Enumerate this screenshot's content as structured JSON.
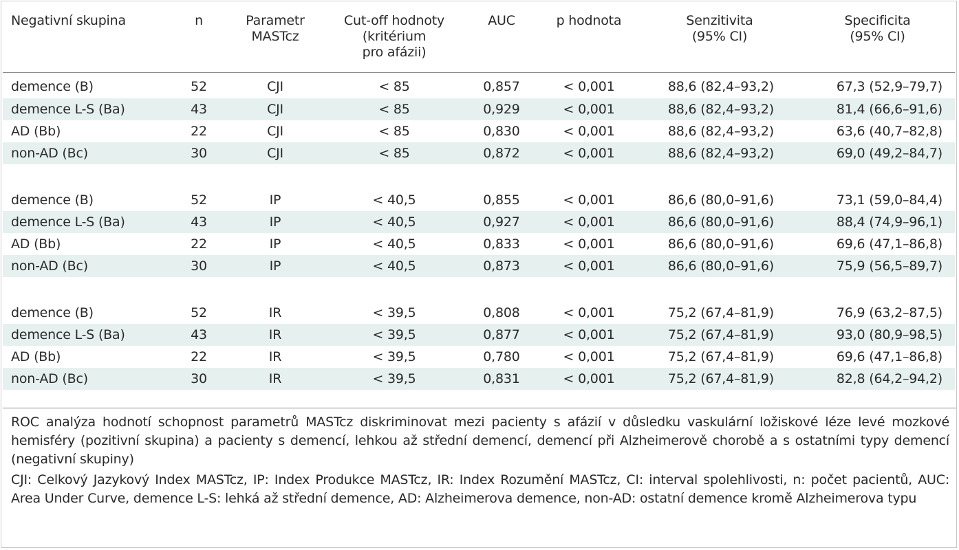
{
  "header": {
    "col1": [
      "Negativní skupina"
    ],
    "col2": [
      "n"
    ],
    "col3": [
      "Parametr",
      "MASTcz"
    ],
    "col4": [
      "Cut-off hodnoty",
      "(kritérium",
      "pro afázii)"
    ],
    "col5": [
      "AUC"
    ],
    "col6": [
      "p hodnota"
    ],
    "col7": [
      "Senzitivita",
      "(95% CI)"
    ],
    "col8": [
      "Specificita",
      "(95% CI)"
    ]
  },
  "rows": [
    [
      "demence (B)",
      "52",
      "CJI",
      "< 85",
      "0,857",
      "< 0,001",
      "88,6 (82,4–93,2)",
      "67,3 (52,9–79,7)"
    ],
    [
      "demence L-S (Ba)",
      "43",
      "CJI",
      "< 85",
      "0,929",
      "< 0,001",
      "88,6 (82,4–93,2)",
      "81,4 (66,6–91,6)"
    ],
    [
      "AD (Bb)",
      "22",
      "CJI",
      "< 85",
      "0,830",
      "< 0,001",
      "88,6 (82,4–93,2)",
      "63,6 (40,7–82,8)"
    ],
    [
      "non-AD (Bc)",
      "30",
      "CJI",
      "< 85",
      "0,872",
      "< 0,001",
      "88,6 (82,4–93,2)",
      "69,0 (49,2–84,7)"
    ],
    [
      "demence (B)",
      "52",
      "IP",
      "< 40,5",
      "0,855",
      "< 0,001",
      "86,6 (80,0–91,6)",
      "73,1 (59,0–84,4)"
    ],
    [
      "demence L-S (Ba)",
      "43",
      "IP",
      "< 40,5",
      "0,927",
      "< 0,001",
      "86,6 (80,0–91,6)",
      "88,4 (74,9–96,1)"
    ],
    [
      "AD (Bb)",
      "22",
      "IP",
      "< 40,5",
      "0,833",
      "< 0,001",
      "86,6 (80,0–91,6)",
      "69,6 (47,1–86,8)"
    ],
    [
      "non-AD (Bc)",
      "30",
      "IP",
      "< 40,5",
      "0,873",
      "< 0,001",
      "86,6 (80,0–91,6)",
      "75,9 (56,5–89,7)"
    ],
    [
      "demence (B)",
      "52",
      "IR",
      "< 39,5",
      "0,808",
      "< 0,001",
      "75,2 (67,4–81,9)",
      "76,9 (63,2–87,5)"
    ],
    [
      "demence L-S (Ba)",
      "43",
      "IR",
      "< 39,5",
      "0,877",
      "< 0,001",
      "75,2 (67,4–81,9)",
      "93,0 (80,9–98,5)"
    ],
    [
      "AD (Bb)",
      "22",
      "IR",
      "< 39,5",
      "0,780",
      "< 0,001",
      "75,2 (67,4–81,9)",
      "69,6 (47,1–86,8)"
    ],
    [
      "non-AD (Bc)",
      "30",
      "IR",
      "< 39,5",
      "0,831",
      "< 0,001",
      "75,2 (67,4–81,9)",
      "82,8 (64,2–94,2)"
    ]
  ],
  "notes": [
    "ROC analýza hodnotí schopnost parametrů MASTcz diskriminovat mezi pacienty s afázií v důsledku vaskulární ložiskové léze levé mozkové hemisféry (pozitivní skupina) a pacienty s demencí, lehkou až střední demencí, demencí při Alzheimerově chorobě a s ostatními typy demencí (negativní skupiny)",
    "CJI: Celkový Jazykový Index MASTcz, IP: Index Produkce MASTcz, IR: Index Rozumění MASTcz, CI: interval spolehlivosti, n: počet pacientů, AUC: Area Under Curve, demence L-S: lehká až střední demence, AD: Alzheimerova demence, non-AD: ostatní demence kromě Alzheimerova typu"
  ],
  "colors": {
    "row_shade": "#e6f1ef",
    "rule": "#8a8a8a",
    "text": "#2a2a2a"
  }
}
